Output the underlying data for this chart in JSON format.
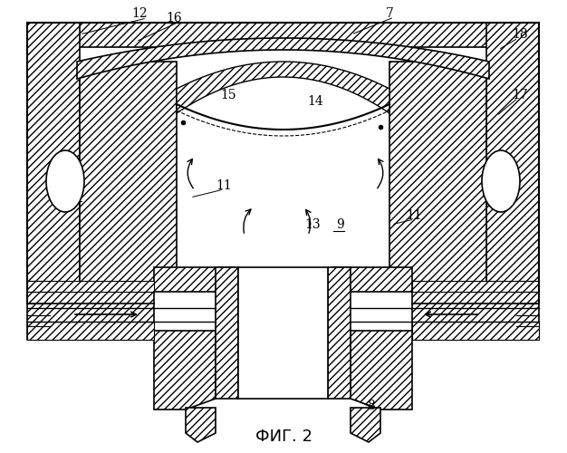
{
  "title": "ФИГ. 2",
  "bg_color": "#ffffff",
  "line_color": "#000000"
}
